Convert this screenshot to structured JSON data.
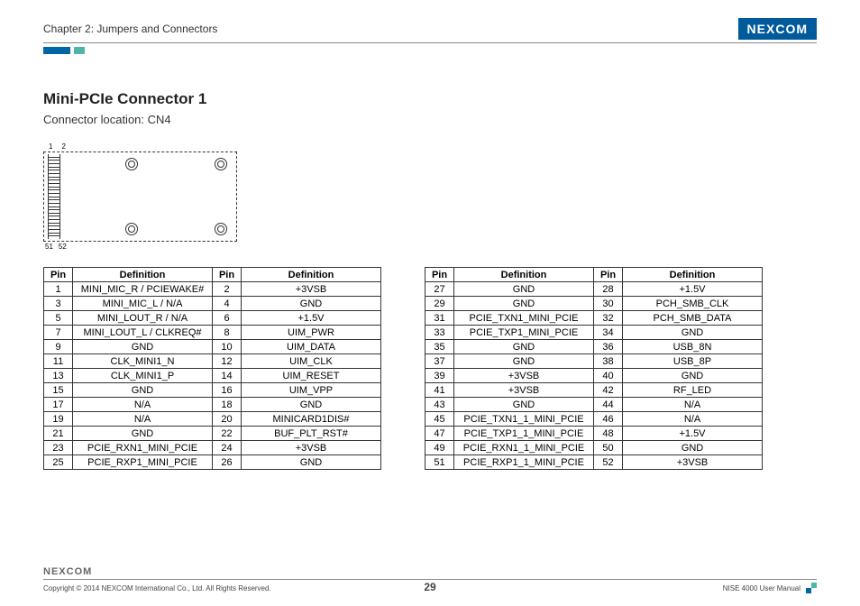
{
  "header": {
    "chapter": "Chapter 2: Jumpers and Connectors",
    "brand": "NEXCOM"
  },
  "section": {
    "title": "Mini-PCIe Connector 1",
    "subtitle": "Connector location: CN4"
  },
  "diagram": {
    "top_left": "1",
    "top_right": "2",
    "bottom_left": "51",
    "bottom_right": "52"
  },
  "table_headers": {
    "pin": "Pin",
    "def": "Definition"
  },
  "table1": [
    {
      "p1": "1",
      "d1": "MINI_MIC_R / PCIEWAKE#",
      "p2": "2",
      "d2": "+3VSB"
    },
    {
      "p1": "3",
      "d1": "MINI_MIC_L / N/A",
      "p2": "4",
      "d2": "GND"
    },
    {
      "p1": "5",
      "d1": "MINI_LOUT_R / N/A",
      "p2": "6",
      "d2": "+1.5V"
    },
    {
      "p1": "7",
      "d1": "MINI_LOUT_L / CLKREQ#",
      "p2": "8",
      "d2": "UIM_PWR"
    },
    {
      "p1": "9",
      "d1": "GND",
      "p2": "10",
      "d2": "UIM_DATA"
    },
    {
      "p1": "11",
      "d1": "CLK_MINI1_N",
      "p2": "12",
      "d2": "UIM_CLK"
    },
    {
      "p1": "13",
      "d1": "CLK_MINI1_P",
      "p2": "14",
      "d2": "UIM_RESET"
    },
    {
      "p1": "15",
      "d1": "GND",
      "p2": "16",
      "d2": "UIM_VPP"
    },
    {
      "p1": "17",
      "d1": "N/A",
      "p2": "18",
      "d2": "GND"
    },
    {
      "p1": "19",
      "d1": "N/A",
      "p2": "20",
      "d2": "MINICARD1DIS#"
    },
    {
      "p1": "21",
      "d1": "GND",
      "p2": "22",
      "d2": "BUF_PLT_RST#"
    },
    {
      "p1": "23",
      "d1": "PCIE_RXN1_MINI_PCIE",
      "p2": "24",
      "d2": "+3VSB"
    },
    {
      "p1": "25",
      "d1": "PCIE_RXP1_MINI_PCIE",
      "p2": "26",
      "d2": "GND"
    }
  ],
  "table2": [
    {
      "p1": "27",
      "d1": "GND",
      "p2": "28",
      "d2": "+1.5V"
    },
    {
      "p1": "29",
      "d1": "GND",
      "p2": "30",
      "d2": "PCH_SMB_CLK"
    },
    {
      "p1": "31",
      "d1": "PCIE_TXN1_MINI_PCIE",
      "p2": "32",
      "d2": "PCH_SMB_DATA"
    },
    {
      "p1": "33",
      "d1": "PCIE_TXP1_MINI_PCIE",
      "p2": "34",
      "d2": "GND"
    },
    {
      "p1": "35",
      "d1": "GND",
      "p2": "36",
      "d2": "USB_8N"
    },
    {
      "p1": "37",
      "d1": "GND",
      "p2": "38",
      "d2": "USB_8P"
    },
    {
      "p1": "39",
      "d1": "+3VSB",
      "p2": "40",
      "d2": "GND"
    },
    {
      "p1": "41",
      "d1": "+3VSB",
      "p2": "42",
      "d2": "RF_LED"
    },
    {
      "p1": "43",
      "d1": "GND",
      "p2": "44",
      "d2": "N/A"
    },
    {
      "p1": "45",
      "d1": "PCIE_TXN1_1_MINI_PCIE",
      "p2": "46",
      "d2": "N/A"
    },
    {
      "p1": "47",
      "d1": "PCIE_TXP1_1_MINI_PCIE",
      "p2": "48",
      "d2": "+1.5V"
    },
    {
      "p1": "49",
      "d1": "PCIE_RXN1_1_MINI_PCIE",
      "p2": "50",
      "d2": "GND"
    },
    {
      "p1": "51",
      "d1": "PCIE_RXP1_1_MINI_PCIE",
      "p2": "52",
      "d2": "+3VSB"
    }
  ],
  "footer": {
    "brand": "NEXCOM",
    "copyright": "Copyright © 2014 NEXCOM International Co., Ltd. All Rights Reserved.",
    "page": "29",
    "manual": "NISE 4000 User Manual"
  }
}
